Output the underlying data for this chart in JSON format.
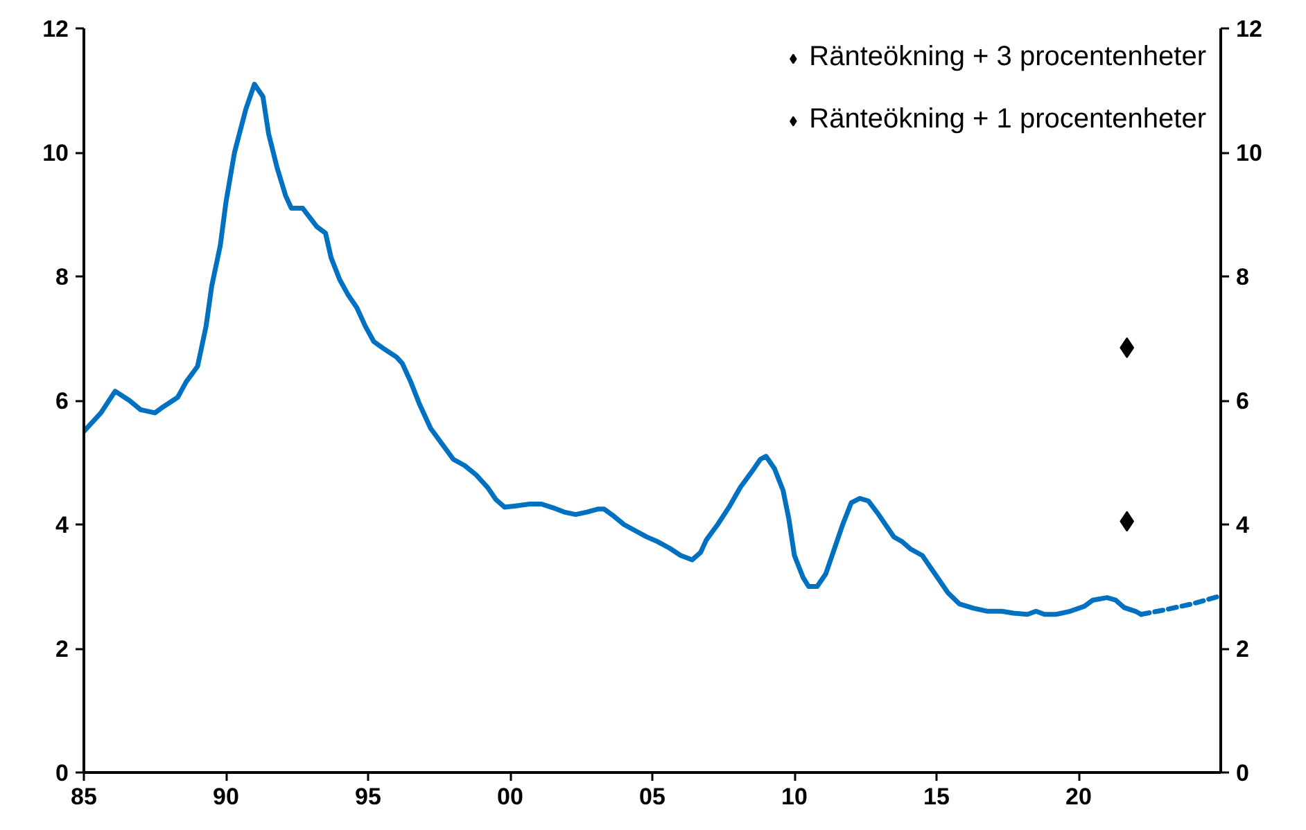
{
  "chart_data": {
    "type": "line",
    "xlim": [
      1985,
      2025
    ],
    "ylim": [
      0,
      12
    ],
    "y2lim": [
      0,
      12
    ],
    "xticks": [
      {
        "value": 1985,
        "label": "85"
      },
      {
        "value": 1990,
        "label": "90"
      },
      {
        "value": 1995,
        "label": "95"
      },
      {
        "value": 2000,
        "label": "00"
      },
      {
        "value": 2005,
        "label": "05"
      },
      {
        "value": 2010,
        "label": "10"
      },
      {
        "value": 2015,
        "label": "15"
      },
      {
        "value": 2020,
        "label": "20"
      }
    ],
    "yticks": [
      0,
      2,
      4,
      6,
      8,
      10,
      12
    ],
    "y2ticks": [
      0,
      2,
      4,
      6,
      8,
      10,
      12
    ],
    "grid": false,
    "legend": "top right",
    "series": [
      {
        "color": "#0070c0",
        "line_style": "solid",
        "x": [
          1985,
          1985.6,
          1986.1,
          1986.6,
          1987.0,
          1987.5,
          1987.8,
          1988.3,
          1988.6,
          1989.0,
          1989.3,
          1989.5,
          1989.8,
          1990.0,
          1990.3,
          1990.7,
          1991.0,
          1991.3,
          1991.5,
          1991.8,
          1992.1,
          1992.3,
          1992.7,
          1993.2,
          1993.5,
          1993.7,
          1994.0,
          1994.3,
          1994.6,
          1994.9,
          1995.2,
          1995.5,
          1996.0,
          1996.2,
          1996.5,
          1996.8,
          1997.2,
          1997.6,
          1998.0,
          1998.4,
          1998.8,
          1999.2,
          1999.5,
          1999.8,
          2000.2,
          2000.7,
          2001.1,
          2001.5,
          2001.9,
          2002.3,
          2002.7,
          2003.1,
          2003.3,
          2003.6,
          2004.0,
          2004.4,
          2004.8,
          2005.2,
          2005.6,
          2006.0,
          2006.4,
          2006.7,
          2006.9,
          2007.3,
          2007.7,
          2008.1,
          2008.5,
          2008.8,
          2009.0,
          2009.3,
          2009.6,
          2009.8,
          2010.0,
          2010.3,
          2010.5,
          2010.8,
          2011.1,
          2011.4,
          2011.7,
          2012.0,
          2012.3,
          2012.6,
          2012.9,
          2013.2,
          2013.5,
          2013.8,
          2014.1,
          2014.5,
          2014.8,
          2015.1,
          2015.4,
          2015.8,
          2016.3,
          2016.8,
          2017.3,
          2017.7,
          2018.2,
          2018.5,
          2018.8,
          2019.2,
          2019.7,
          2020.2,
          2020.5,
          2021.0,
          2021.3,
          2021.6,
          2022.0,
          2022.2
        ],
        "values": [
          5.5,
          5.8,
          6.15,
          6.0,
          5.85,
          5.8,
          5.9,
          6.05,
          6.3,
          6.55,
          7.2,
          7.85,
          8.5,
          9.2,
          10.0,
          10.7,
          11.1,
          10.9,
          10.3,
          9.75,
          9.3,
          9.1,
          9.1,
          8.8,
          8.7,
          8.3,
          7.95,
          7.7,
          7.5,
          7.2,
          6.95,
          6.85,
          6.7,
          6.6,
          6.3,
          5.95,
          5.55,
          5.3,
          5.05,
          4.95,
          4.8,
          4.6,
          4.4,
          4.28,
          4.3,
          4.33,
          4.33,
          4.27,
          4.2,
          4.16,
          4.2,
          4.25,
          4.25,
          4.15,
          4.0,
          3.9,
          3.8,
          3.72,
          3.62,
          3.5,
          3.43,
          3.55,
          3.75,
          4.0,
          4.28,
          4.6,
          4.85,
          5.05,
          5.1,
          4.9,
          4.55,
          4.1,
          3.5,
          3.15,
          3.0,
          3.0,
          3.2,
          3.6,
          4.0,
          4.35,
          4.42,
          4.38,
          4.2,
          4.0,
          3.8,
          3.72,
          3.6,
          3.5,
          3.3,
          3.1,
          2.9,
          2.72,
          2.65,
          2.6,
          2.6,
          2.57,
          2.55,
          2.6,
          2.55,
          2.55,
          2.6,
          2.68,
          2.78,
          2.82,
          2.78,
          2.66,
          2.6,
          2.55
        ]
      },
      {
        "color": "#0070c0",
        "line_style": "dashed",
        "x": [
          2022.2,
          2023,
          2024,
          2025
        ],
        "values": [
          2.55,
          2.62,
          2.72,
          2.85
        ]
      },
      {
        "type": "scatter",
        "name": "Ränteökning + 3 procentenheter",
        "color": "#000000",
        "marker": "diamond",
        "x": [
          2021.7
        ],
        "values": [
          6.85
        ]
      },
      {
        "type": "scatter",
        "name": "Ränteökning + 1 procentenheter",
        "color": "#000000",
        "marker": "diamond",
        "x": [
          2021.7
        ],
        "values": [
          4.05
        ]
      }
    ]
  }
}
